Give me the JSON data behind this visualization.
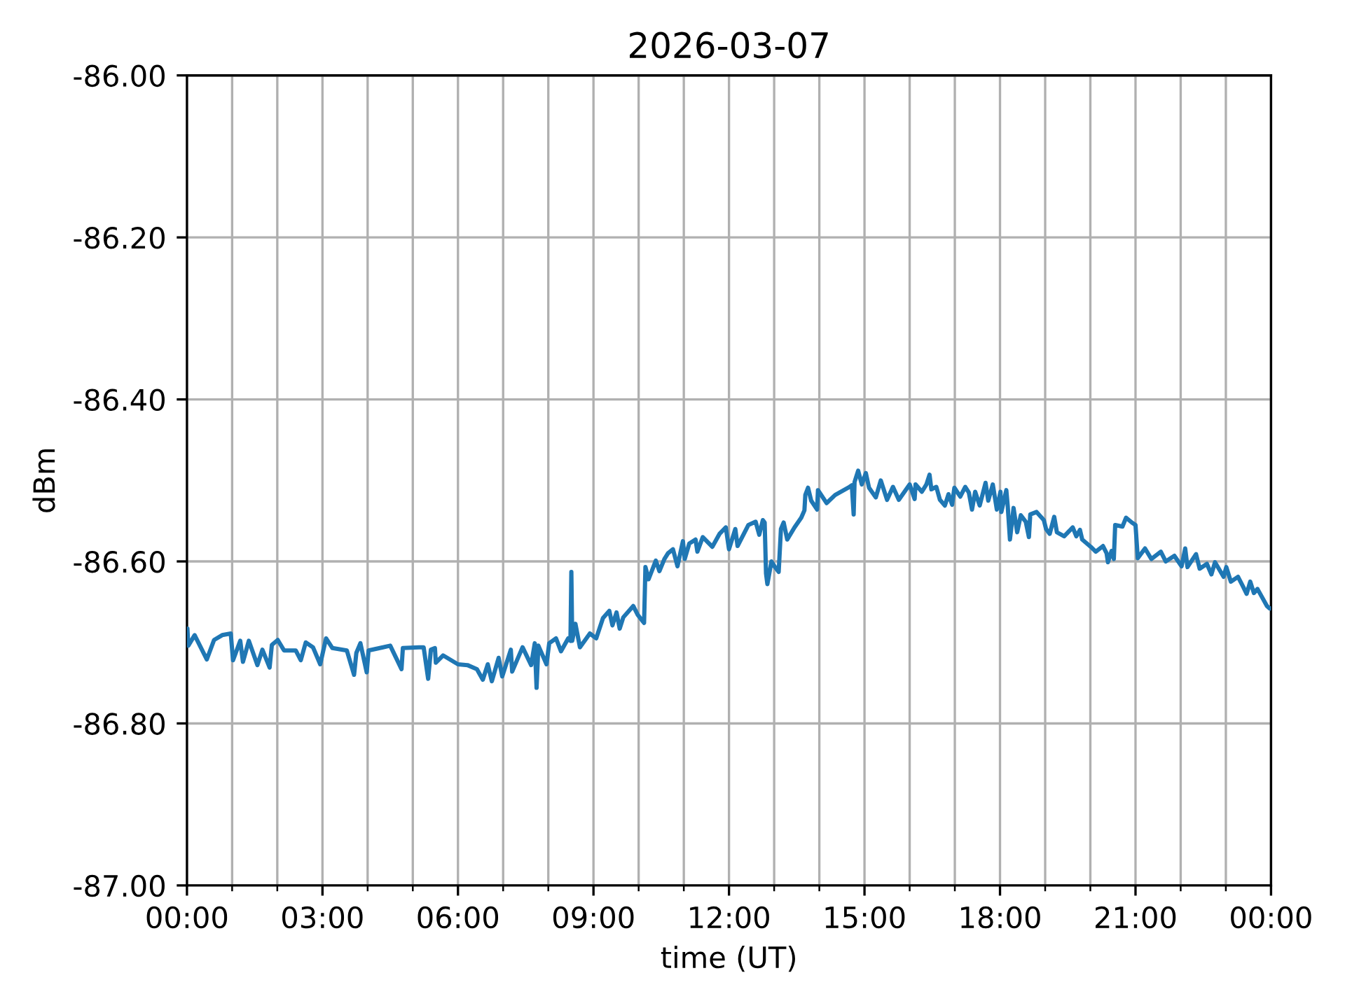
{
  "chart_data": {
    "type": "line",
    "title": "2026-03-07",
    "xlabel": "time (UT)",
    "ylabel": "dBm",
    "x": [
      0.01,
      0.03,
      0.17,
      0.44,
      0.6,
      0.78,
      0.97,
      1.02,
      1.18,
      1.24,
      1.37,
      1.56,
      1.67,
      1.83,
      1.88,
      2.01,
      2.15,
      2.41,
      2.52,
      2.63,
      2.79,
      2.95,
      3.08,
      3.22,
      3.54,
      3.7,
      3.75,
      3.84,
      3.98,
      4.02,
      4.34,
      4.5,
      4.75,
      4.78,
      5.14,
      5.24,
      5.34,
      5.4,
      5.49,
      5.51,
      5.67,
      6.0,
      6.21,
      6.42,
      6.55,
      6.66,
      6.75,
      6.9,
      6.98,
      7.17,
      7.2,
      7.43,
      7.62,
      7.7,
      7.74,
      7.78,
      7.96,
      8.02,
      8.17,
      8.28,
      8.44,
      8.49,
      8.51,
      8.53,
      8.6,
      8.7,
      8.92,
      9.06,
      9.21,
      9.35,
      9.42,
      9.51,
      9.58,
      9.66,
      9.88,
      9.98,
      10.12,
      10.15,
      10.22,
      10.38,
      10.46,
      10.57,
      10.65,
      10.76,
      10.86,
      10.98,
      11.02,
      11.12,
      11.26,
      11.3,
      11.42,
      11.63,
      11.79,
      11.93,
      12.0,
      12.14,
      12.19,
      12.43,
      12.59,
      12.67,
      12.75,
      12.79,
      12.82,
      12.85,
      12.94,
      13.02,
      13.1,
      13.15,
      13.21,
      13.29,
      13.45,
      13.6,
      13.67,
      13.69,
      13.75,
      13.82,
      13.95,
      13.97,
      14.16,
      14.35,
      14.64,
      14.72,
      14.76,
      14.78,
      14.86,
      14.94,
      15.03,
      15.1,
      15.25,
      15.36,
      15.5,
      15.63,
      15.76,
      16.0,
      16.11,
      16.13,
      16.27,
      16.37,
      16.44,
      16.48,
      16.59,
      16.67,
      16.78,
      16.86,
      16.94,
      16.99,
      17.12,
      17.23,
      17.31,
      17.38,
      17.45,
      17.55,
      17.68,
      17.74,
      17.84,
      17.93,
      18.01,
      18.03,
      18.14,
      18.17,
      18.22,
      18.3,
      18.38,
      18.46,
      18.57,
      18.64,
      18.67,
      18.81,
      18.97,
      19.02,
      19.1,
      19.2,
      19.26,
      19.42,
      19.61,
      19.69,
      19.77,
      19.82,
      20.01,
      20.12,
      20.28,
      20.36,
      20.39,
      20.47,
      20.52,
      20.55,
      20.71,
      20.79,
      20.92,
      21.0,
      21.05,
      21.21,
      21.35,
      21.56,
      21.67,
      21.86,
      22.02,
      22.1,
      22.15,
      22.34,
      22.42,
      22.58,
      22.68,
      22.76,
      22.95,
      23.01,
      23.11,
      23.27,
      23.38,
      23.46,
      23.54,
      23.62,
      23.7,
      23.81,
      23.91,
      23.97,
      24.0
    ],
    "series": [
      {
        "color": "#1f77b4",
        "values": [
          -86.683,
          -86.704,
          -86.691,
          -86.721,
          -86.697,
          -86.691,
          -86.689,
          -86.722,
          -86.698,
          -86.724,
          -86.698,
          -86.728,
          -86.709,
          -86.731,
          -86.703,
          -86.697,
          -86.71,
          -86.71,
          -86.722,
          -86.7,
          -86.706,
          -86.727,
          -86.695,
          -86.707,
          -86.71,
          -86.74,
          -86.713,
          -86.701,
          -86.737,
          -86.71,
          -86.706,
          -86.704,
          -86.733,
          -86.707,
          -86.706,
          -86.706,
          -86.745,
          -86.709,
          -86.707,
          -86.725,
          -86.716,
          -86.727,
          -86.728,
          -86.733,
          -86.746,
          -86.727,
          -86.748,
          -86.719,
          -86.742,
          -86.709,
          -86.736,
          -86.706,
          -86.728,
          -86.701,
          -86.756,
          -86.704,
          -86.727,
          -86.701,
          -86.695,
          -86.711,
          -86.695,
          -86.698,
          -86.613,
          -86.698,
          -86.677,
          -86.706,
          -86.689,
          -86.695,
          -86.67,
          -86.661,
          -86.679,
          -86.663,
          -86.683,
          -86.669,
          -86.655,
          -86.666,
          -86.676,
          -86.607,
          -86.622,
          -86.599,
          -86.612,
          -86.597,
          -86.59,
          -86.585,
          -86.606,
          -86.575,
          -86.597,
          -86.578,
          -86.573,
          -86.588,
          -86.57,
          -86.582,
          -86.566,
          -86.558,
          -86.585,
          -86.56,
          -86.581,
          -86.555,
          -86.551,
          -86.567,
          -86.549,
          -86.552,
          -86.615,
          -86.628,
          -86.6,
          -86.607,
          -86.613,
          -86.56,
          -86.552,
          -86.573,
          -86.558,
          -86.546,
          -86.537,
          -86.518,
          -86.509,
          -86.525,
          -86.536,
          -86.512,
          -86.528,
          -86.518,
          -86.509,
          -86.506,
          -86.542,
          -86.502,
          -86.488,
          -86.505,
          -86.491,
          -86.509,
          -86.521,
          -86.5,
          -86.524,
          -86.508,
          -86.524,
          -86.505,
          -86.523,
          -86.505,
          -86.514,
          -86.505,
          -86.493,
          -86.511,
          -86.508,
          -86.524,
          -86.531,
          -86.517,
          -86.53,
          -86.509,
          -86.52,
          -86.508,
          -86.515,
          -86.536,
          -86.514,
          -86.531,
          -86.503,
          -86.525,
          -86.505,
          -86.536,
          -86.514,
          -86.539,
          -86.512,
          -86.531,
          -86.573,
          -86.534,
          -86.564,
          -86.543,
          -86.551,
          -86.57,
          -86.542,
          -86.539,
          -86.549,
          -86.56,
          -86.566,
          -86.545,
          -86.564,
          -86.569,
          -86.558,
          -86.569,
          -86.561,
          -86.573,
          -86.582,
          -86.588,
          -86.581,
          -86.59,
          -86.601,
          -86.587,
          -86.597,
          -86.555,
          -86.557,
          -86.546,
          -86.552,
          -86.555,
          -86.596,
          -86.584,
          -86.597,
          -86.588,
          -86.6,
          -86.593,
          -86.606,
          -86.584,
          -86.607,
          -86.591,
          -86.609,
          -86.603,
          -86.616,
          -86.601,
          -86.619,
          -86.607,
          -86.625,
          -86.619,
          -86.631,
          -86.64,
          -86.625,
          -86.639,
          -86.634,
          -86.645,
          -86.655,
          -86.658,
          -86.658
        ]
      }
    ],
    "xlim": [
      0,
      24
    ],
    "ylim": [
      -87,
      -86
    ],
    "xticks": [
      {
        "value": 0,
        "label": "00:00"
      },
      {
        "value": 1,
        "label": null
      },
      {
        "value": 2,
        "label": null
      },
      {
        "value": 3,
        "label": "03:00"
      },
      {
        "value": 4,
        "label": null
      },
      {
        "value": 5,
        "label": null
      },
      {
        "value": 6,
        "label": "06:00"
      },
      {
        "value": 7,
        "label": null
      },
      {
        "value": 8,
        "label": null
      },
      {
        "value": 9,
        "label": "09:00"
      },
      {
        "value": 10,
        "label": null
      },
      {
        "value": 11,
        "label": null
      },
      {
        "value": 12,
        "label": "12:00"
      },
      {
        "value": 13,
        "label": null
      },
      {
        "value": 14,
        "label": null
      },
      {
        "value": 15,
        "label": "15:00"
      },
      {
        "value": 16,
        "label": null
      },
      {
        "value": 17,
        "label": null
      },
      {
        "value": 18,
        "label": "18:00"
      },
      {
        "value": 19,
        "label": null
      },
      {
        "value": 20,
        "label": null
      },
      {
        "value": 21,
        "label": "21:00"
      },
      {
        "value": 22,
        "label": null
      },
      {
        "value": 23,
        "label": null
      },
      {
        "value": 24,
        "label": "00:00"
      }
    ],
    "yticks": [
      {
        "value": -87,
        "label": "-87.00"
      },
      {
        "value": -86.8,
        "label": "-86.80"
      },
      {
        "value": -86.6,
        "label": "-86.60"
      },
      {
        "value": -86.4,
        "label": "-86.40"
      },
      {
        "value": -86.2,
        "label": "-86.20"
      },
      {
        "value": -86,
        "label": "-86.00"
      }
    ],
    "grid": true
  }
}
